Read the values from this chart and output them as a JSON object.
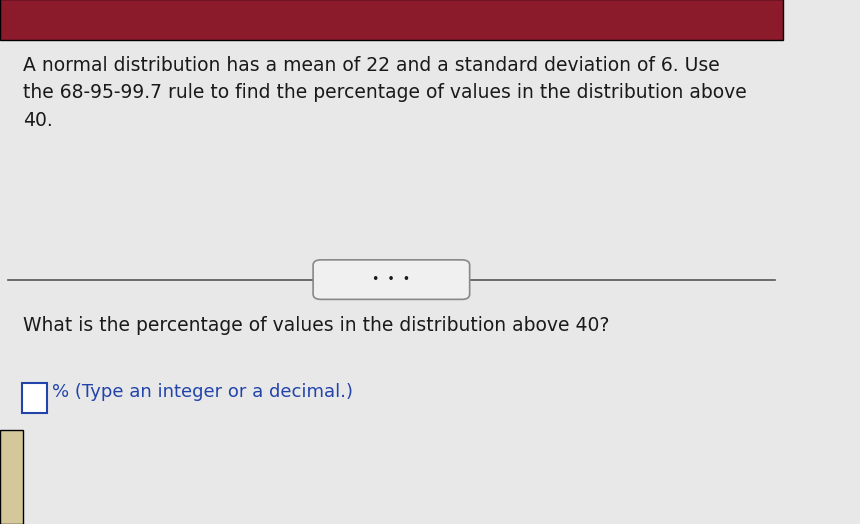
{
  "background_top": "#8B1A2B",
  "background_main": "#E8E8E8",
  "background_bottom": "#D4C89A",
  "title_text": "A normal distribution has a mean of 22 and a standard deviation of 6. Use\nthe 68-95-99.7 rule to find the percentage of values in the distribution above\n40.",
  "divider_dots": "•  •  •",
  "question_text": "What is the percentage of values in the distribution above 40?",
  "answer_prompt": "% (Type an integer or a decimal.)",
  "title_fontsize": 13.5,
  "question_fontsize": 13.5,
  "answer_fontsize": 13.0,
  "text_color": "#1a1a1a",
  "line_color": "#555555",
  "dots_bg": "#f0f0f0",
  "dots_border": "#888888",
  "checkbox_color": "#2244aa",
  "answer_text_color": "#2244aa"
}
